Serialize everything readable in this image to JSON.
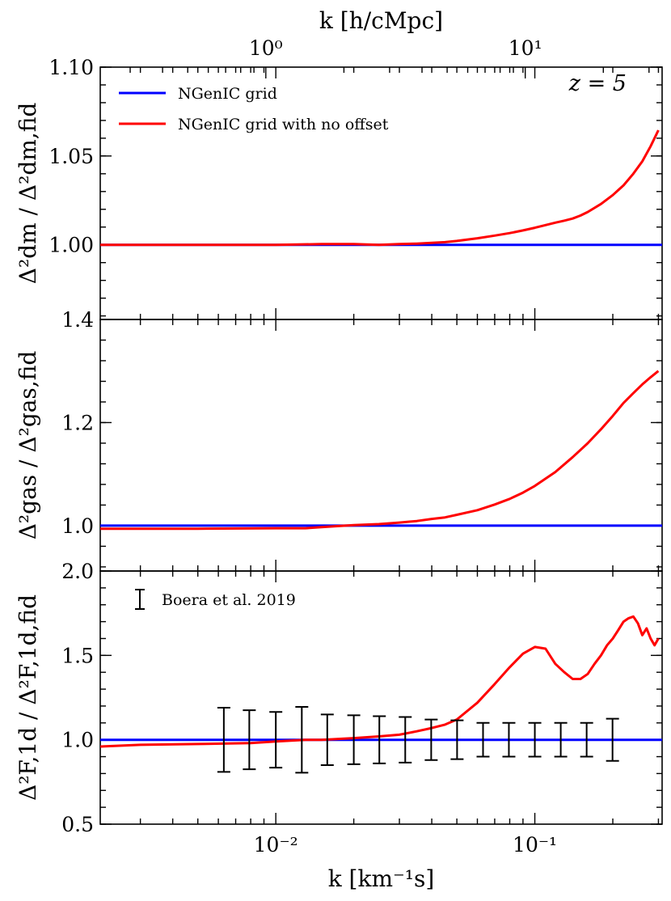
{
  "chart_data": {
    "type": "line",
    "x_axis": {
      "label": "k [km⁻¹s]",
      "scale": "log",
      "range": [
        0.0021,
        0.31
      ],
      "major_ticks": [
        {
          "value": 0.01,
          "label": "10⁻²"
        },
        {
          "value": 0.1,
          "label": "10⁻¹"
        }
      ]
    },
    "top_axis": {
      "label": "k [h/cMpc]",
      "scale": "log",
      "range": [
        0.23,
        33.7
      ],
      "major_ticks": [
        {
          "value": 1,
          "label": "10⁰"
        },
        {
          "value": 10,
          "label": "10¹"
        }
      ]
    },
    "annotation": "z = 5",
    "legend": {
      "position": "top-left",
      "entries": [
        {
          "label": "NGenIC grid",
          "color": "#0000ff"
        },
        {
          "label": "NGenIC grid with no offset",
          "color": "#ff0000"
        }
      ]
    },
    "panels": [
      {
        "name": "dark-matter",
        "ylabel": "Δ²dm / Δ²dm,fid",
        "ylim": [
          0.958,
          1.1
        ],
        "yticks": [
          {
            "value": 1.0,
            "label": "1.00"
          },
          {
            "value": 1.05,
            "label": "1.05"
          },
          {
            "value": 1.1,
            "label": "1.10"
          }
        ],
        "series": [
          {
            "name": "NGenIC grid",
            "color": "#0000ff",
            "x": [
              0.0021,
              0.31
            ],
            "y": [
              1.0,
              1.0
            ]
          },
          {
            "name": "NGenIC grid with no offset",
            "color": "#ff0000",
            "x": [
              0.0021,
              0.005,
              0.01,
              0.015,
              0.02,
              0.025,
              0.03,
              0.035,
              0.04,
              0.045,
              0.05,
              0.06,
              0.07,
              0.08,
              0.09,
              0.1,
              0.11,
              0.12,
              0.13,
              0.14,
              0.15,
              0.16,
              0.18,
              0.2,
              0.22,
              0.24,
              0.26,
              0.28,
              0.3
            ],
            "y": [
              1.0,
              1.0,
              1.0,
              1.0004,
              1.0004,
              1.0,
              1.0004,
              1.0007,
              1.0011,
              1.0015,
              1.0022,
              1.0037,
              1.0052,
              1.0066,
              1.0081,
              1.0096,
              1.0111,
              1.0125,
              1.0136,
              1.0148,
              1.0165,
              1.0185,
              1.023,
              1.028,
              1.0335,
              1.04,
              1.047,
              1.0555,
              1.0645
            ]
          }
        ]
      },
      {
        "name": "gas",
        "ylabel": "Δ²gas / Δ²gas,fid",
        "ylim": [
          0.912,
          1.4
        ],
        "yticks": [
          {
            "value": 1.0,
            "label": "1.0"
          },
          {
            "value": 1.2,
            "label": "1.2"
          },
          {
            "value": 1.4,
            "label": "1.4"
          }
        ],
        "series": [
          {
            "name": "NGenIC grid",
            "color": "#0000ff",
            "x": [
              0.0021,
              0.31
            ],
            "y": [
              1.0,
              1.0
            ]
          },
          {
            "name": "NGenIC grid with no offset",
            "color": "#ff0000",
            "x": [
              0.0021,
              0.005,
              0.01,
              0.013,
              0.015,
              0.017,
              0.02,
              0.025,
              0.03,
              0.035,
              0.04,
              0.045,
              0.05,
              0.06,
              0.07,
              0.08,
              0.09,
              0.1,
              0.12,
              0.14,
              0.16,
              0.18,
              0.2,
              0.22,
              0.24,
              0.26,
              0.28,
              0.3
            ],
            "y": [
              0.994,
              0.994,
              0.995,
              0.995,
              0.997,
              0.999,
              1.001,
              1.003,
              1.006,
              1.009,
              1.013,
              1.016,
              1.021,
              1.03,
              1.041,
              1.052,
              1.064,
              1.077,
              1.104,
              1.133,
              1.16,
              1.187,
              1.213,
              1.238,
              1.257,
              1.274,
              1.288,
              1.3
            ]
          }
        ]
      },
      {
        "name": "flux",
        "ylabel": "Δ²F,1d / Δ²F,1d,fid",
        "ylim": [
          0.5,
          2.0
        ],
        "yticks": [
          {
            "value": 0.5,
            "label": "0.5"
          },
          {
            "value": 1.0,
            "label": "1.0"
          },
          {
            "value": 1.5,
            "label": "1.5"
          },
          {
            "value": 2.0,
            "label": "2.0"
          }
        ],
        "series": [
          {
            "name": "NGenIC grid",
            "color": "#0000ff",
            "x": [
              0.0021,
              0.31
            ],
            "y": [
              1.0,
              1.0
            ]
          },
          {
            "name": "NGenIC grid with no offset",
            "color": "#ff0000",
            "x": [
              0.0021,
              0.003,
              0.005,
              0.008,
              0.01,
              0.013,
              0.015,
              0.02,
              0.025,
              0.03,
              0.035,
              0.04,
              0.045,
              0.05,
              0.06,
              0.07,
              0.08,
              0.09,
              0.1,
              0.11,
              0.12,
              0.13,
              0.14,
              0.15,
              0.16,
              0.17,
              0.18,
              0.19,
              0.2,
              0.21,
              0.22,
              0.23,
              0.24,
              0.25,
              0.26,
              0.27,
              0.28,
              0.29,
              0.3
            ],
            "y": [
              0.96,
              0.97,
              0.975,
              0.98,
              0.99,
              1.0,
              1.0,
              1.01,
              1.02,
              1.03,
              1.05,
              1.07,
              1.09,
              1.12,
              1.22,
              1.33,
              1.43,
              1.51,
              1.55,
              1.54,
              1.45,
              1.4,
              1.36,
              1.36,
              1.39,
              1.45,
              1.5,
              1.56,
              1.6,
              1.65,
              1.7,
              1.72,
              1.73,
              1.69,
              1.62,
              1.66,
              1.6,
              1.56,
              1.6
            ]
          }
        ],
        "errorbars": {
          "label": "Boera et al. 2019",
          "color": "#000000",
          "points": [
            {
              "x": 0.0063,
              "y": 1.0,
              "yerr": 0.19
            },
            {
              "x": 0.0079,
              "y": 1.0,
              "yerr": 0.175
            },
            {
              "x": 0.01,
              "y": 1.0,
              "yerr": 0.165
            },
            {
              "x": 0.0126,
              "y": 1.0,
              "yerr": 0.195
            },
            {
              "x": 0.0158,
              "y": 1.0,
              "yerr": 0.15
            },
            {
              "x": 0.02,
              "y": 1.0,
              "yerr": 0.145
            },
            {
              "x": 0.0251,
              "y": 1.0,
              "yerr": 0.14
            },
            {
              "x": 0.0316,
              "y": 1.0,
              "yerr": 0.135
            },
            {
              "x": 0.0398,
              "y": 1.0,
              "yerr": 0.12
            },
            {
              "x": 0.0501,
              "y": 1.0,
              "yerr": 0.115
            },
            {
              "x": 0.0631,
              "y": 1.0,
              "yerr": 0.1
            },
            {
              "x": 0.0794,
              "y": 1.0,
              "yerr": 0.1
            },
            {
              "x": 0.1,
              "y": 1.0,
              "yerr": 0.1
            },
            {
              "x": 0.1259,
              "y": 1.0,
              "yerr": 0.1
            },
            {
              "x": 0.1585,
              "y": 1.0,
              "yerr": 0.1
            },
            {
              "x": 0.1995,
              "y": 1.0,
              "yerr": 0.125
            }
          ]
        }
      }
    ]
  }
}
